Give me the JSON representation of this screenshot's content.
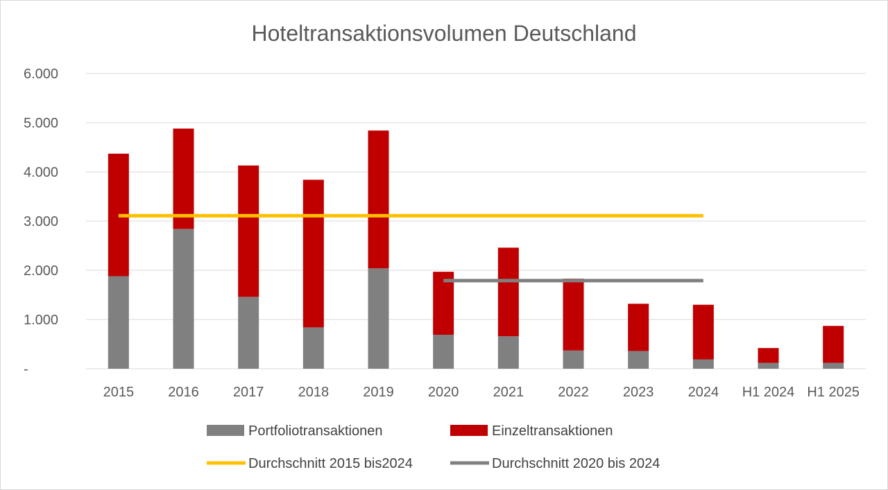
{
  "chart_data": {
    "type": "bar",
    "stacked": true,
    "title": "Hoteltransaktionsvolumen Deutschland",
    "xlabel": "",
    "ylabel": "",
    "ylim": [
      0,
      6000
    ],
    "yticks": [
      0,
      1000,
      2000,
      3000,
      4000,
      5000,
      6000
    ],
    "ytick_labels": [
      "-",
      "1.000",
      "2.000",
      "3.000",
      "4.000",
      "5.000",
      "6.000"
    ],
    "categories": [
      "2015",
      "2016",
      "2017",
      "2018",
      "2019",
      "2020",
      "2021",
      "2022",
      "2023",
      "2024",
      "H1 2024",
      "H1 2025"
    ],
    "grid": true,
    "legend_position": "bottom",
    "series": [
      {
        "name": "Portfoliotransaktionen",
        "color": "#808080",
        "values": [
          1880,
          2840,
          1460,
          840,
          2040,
          690,
          660,
          370,
          360,
          190,
          120,
          120
        ]
      },
      {
        "name": "Einzeltransaktionen",
        "color": "#c00000",
        "values": [
          2490,
          2040,
          2670,
          3000,
          2800,
          1280,
          1800,
          1460,
          960,
          1110,
          300,
          750
        ]
      }
    ],
    "reference_lines": [
      {
        "name": "Durchschnitt 2015 bis2024",
        "color": "#ffc000",
        "value": 3110,
        "from": "2015",
        "to": "2024"
      },
      {
        "name": "Durchschnitt 2020 bis 2024",
        "color": "#808080",
        "value": 1790,
        "from": "2020",
        "to": "2024"
      }
    ]
  }
}
